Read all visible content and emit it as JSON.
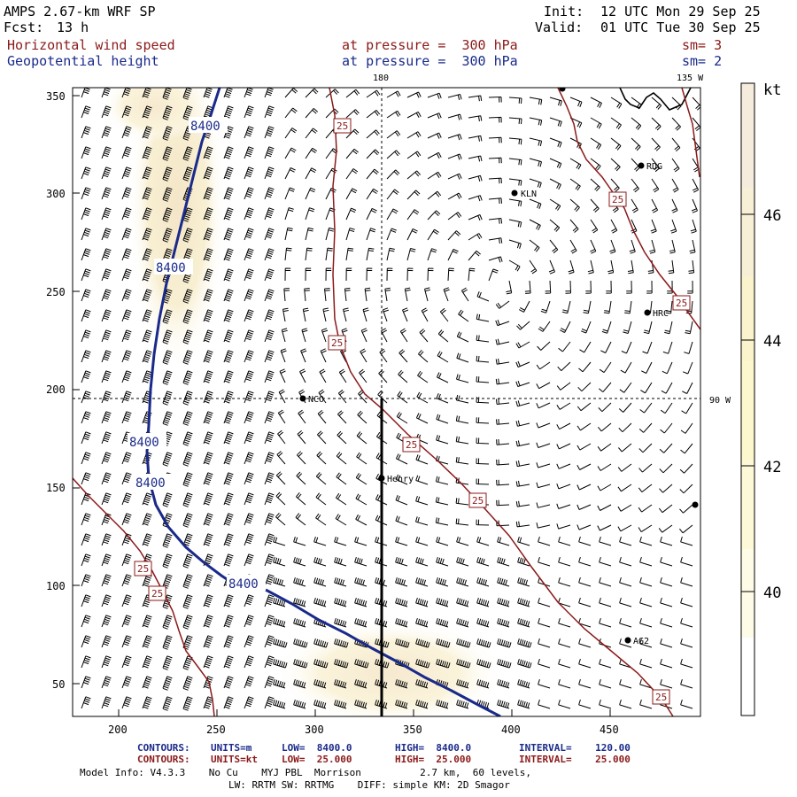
{
  "header": {
    "model": "AMPS 2.67-km WRF SP",
    "fcst_label": "Fcst:",
    "fcst_value": "13 h",
    "init_label": "Init:",
    "init_value": "12 UTC Mon 29 Sep 25",
    "valid_label": "Valid:",
    "valid_value": "01 UTC Tue 30 Sep 25",
    "field1_name": "Horizontal wind speed",
    "field1_pressure": "at pressure =  300 hPa",
    "field1_sm": "sm= 3",
    "field2_name": "Geopotential height",
    "field2_pressure": "at pressure =  300 hPa",
    "field2_sm": "sm= 2"
  },
  "map": {
    "lon_top_label": "180",
    "lon_right_top_label": "135 W",
    "lon_right_label": "90 W",
    "x_ticks": [
      "200",
      "250",
      "300",
      "350",
      "400",
      "450"
    ],
    "y_ticks": [
      "350",
      "300",
      "250",
      "200",
      "150",
      "100",
      "50"
    ],
    "stations": [
      {
        "name": "RDG"
      },
      {
        "name": "KLN"
      },
      {
        "name": "HRC"
      },
      {
        "name": "NCO"
      },
      {
        "name": "Henry"
      },
      {
        "name": "AG2"
      }
    ],
    "height_contour_labels": [
      "8400",
      "8400",
      "8400",
      "8400",
      "8400"
    ],
    "speed_contour_labels": [
      "25",
      "25",
      "25",
      "25",
      "25",
      "25",
      "25",
      "25",
      "25"
    ]
  },
  "colorbar": {
    "unit": "kt",
    "ticks": [
      "46",
      "44",
      "42",
      "40"
    ],
    "colors": [
      "#f5ecde",
      "#f8f0d6",
      "#faf3cc",
      "#fcf7cc",
      "#fdf9d8",
      "#fefbe6",
      "#ffffff"
    ]
  },
  "footer": {
    "c1_contours": "CONTOURS:",
    "c1_units": "UNITS=m",
    "c1_low": "LOW=  8400.0",
    "c1_high": "HIGH=  8400.0",
    "c1_interval": "INTERVAL=    120.00",
    "c2_contours": "CONTOURS:",
    "c2_units": "UNITS=kt",
    "c2_low": "LOW=  25.000",
    "c2_high": "HIGH=  25.000",
    "c2_interval": "INTERVAL=    25.000",
    "info1": "Model Info: V4.3.3    No Cu    MYJ PBL  Morrison          2.7 km,  60 levels,",
    "info2": "LW: RRTM SW: RRTMG    DIFF: simple KM: 2D Smagor"
  },
  "colors": {
    "height_contour": "#1a2a8a",
    "speed_contour": "#8b1a1a",
    "shade": "#f7eecf"
  }
}
